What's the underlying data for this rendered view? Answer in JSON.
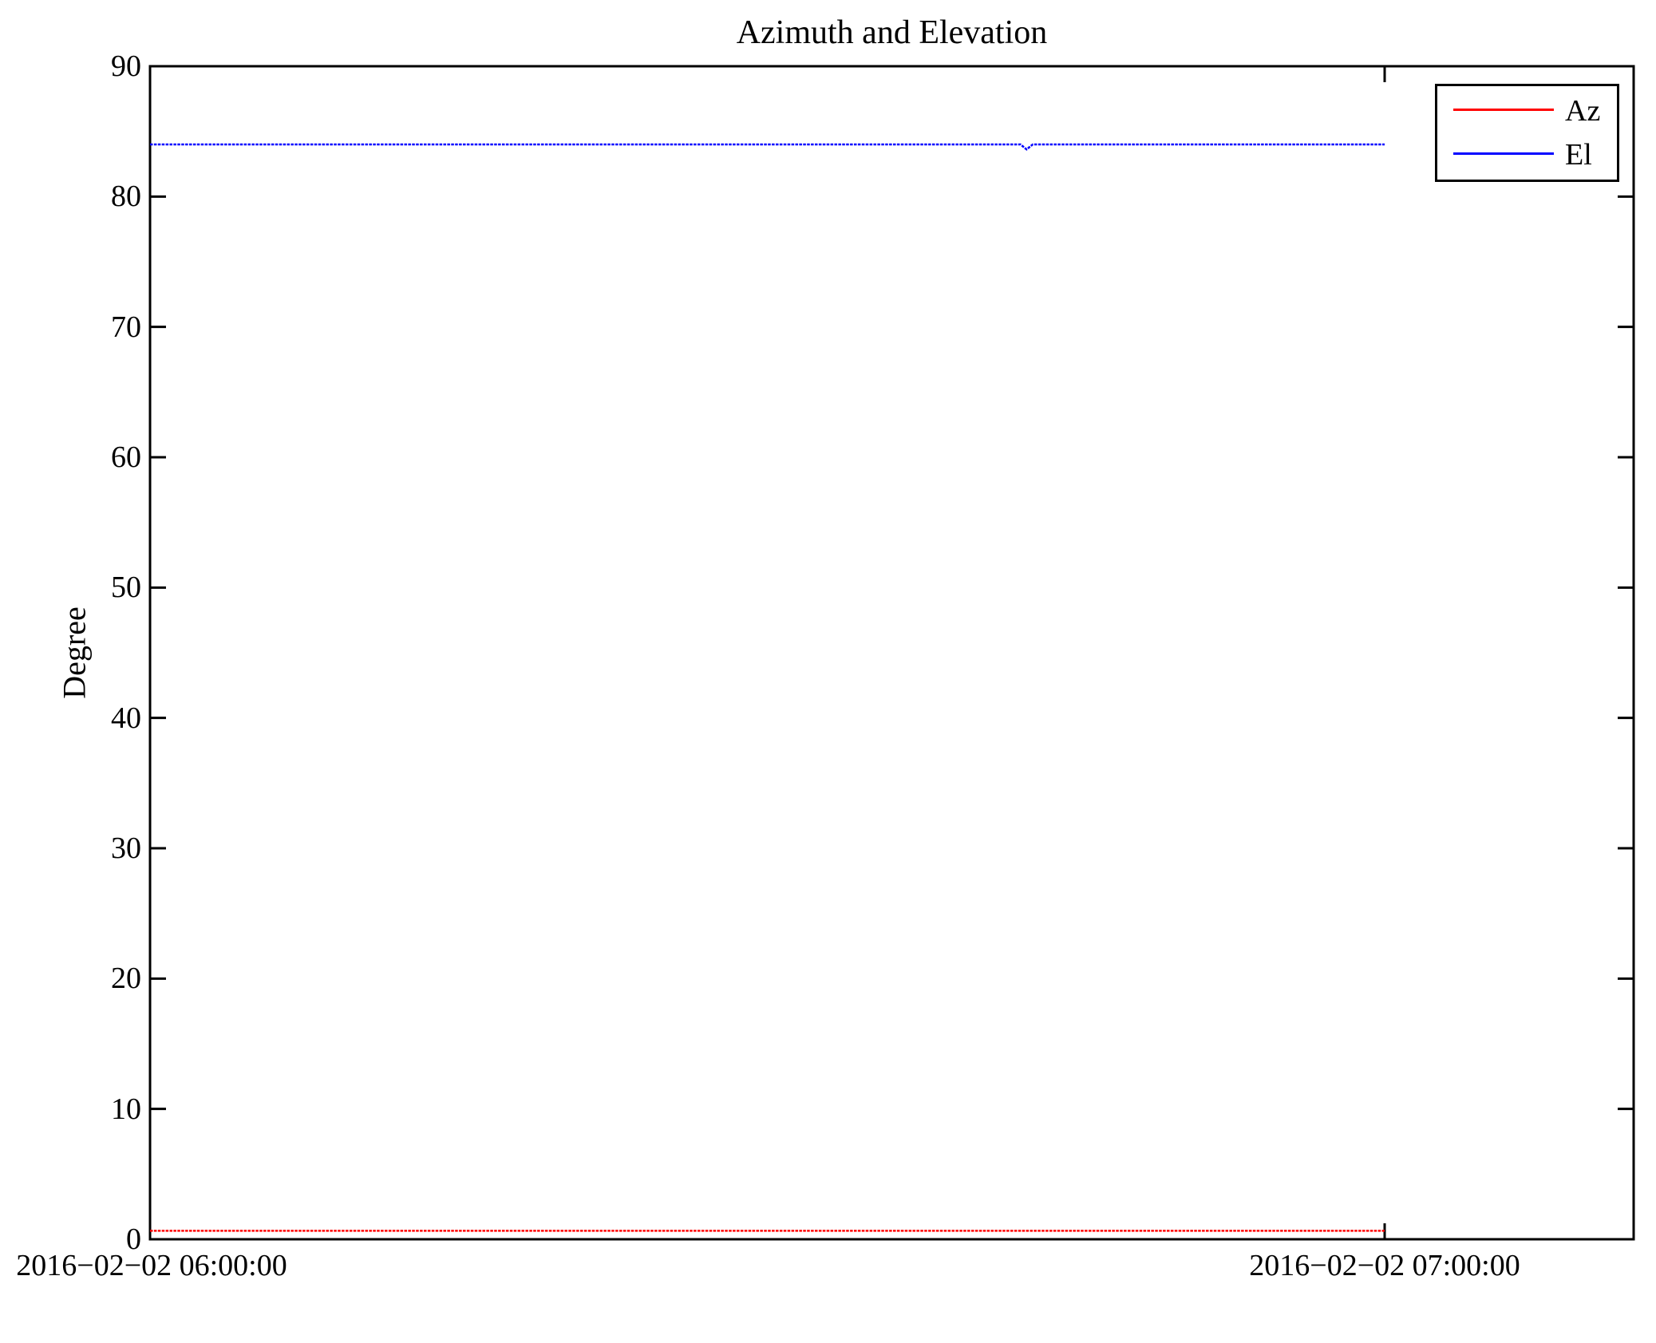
{
  "chart_data": {
    "type": "line",
    "title": "Azimuth and Elevation",
    "xlabel": "",
    "ylabel": "Degree",
    "ylim": [
      0,
      90
    ],
    "yticks": [
      90,
      80,
      70,
      60,
      50,
      40,
      30,
      20,
      10,
      0
    ],
    "xticks": [
      {
        "label": "2016−02−02 06:00:00",
        "minutes": 0
      },
      {
        "label": "2016−02−02 07:00:00",
        "minutes": 60
      }
    ],
    "x_visible_span_minutes": 72,
    "grid": false,
    "axis_color": "#000000",
    "background_color": "#ffffff",
    "legend": {
      "position": "top-right",
      "entries": [
        {
          "label": "Az",
          "color": "#ff0000"
        },
        {
          "label": "El",
          "color": "#0000ff"
        }
      ]
    },
    "series": [
      {
        "name": "Az",
        "color": "#ff0000",
        "style": "dense-dotted",
        "points_min_deg": [
          [
            0,
            0.65
          ],
          [
            60,
            0.65
          ]
        ]
      },
      {
        "name": "El",
        "color": "#0000ff",
        "style": "dense-dotted",
        "points_min_deg": [
          [
            0,
            84
          ],
          [
            42.3,
            84
          ],
          [
            42.6,
            83.62
          ],
          [
            42.9,
            84
          ],
          [
            60,
            84
          ]
        ]
      }
    ]
  }
}
